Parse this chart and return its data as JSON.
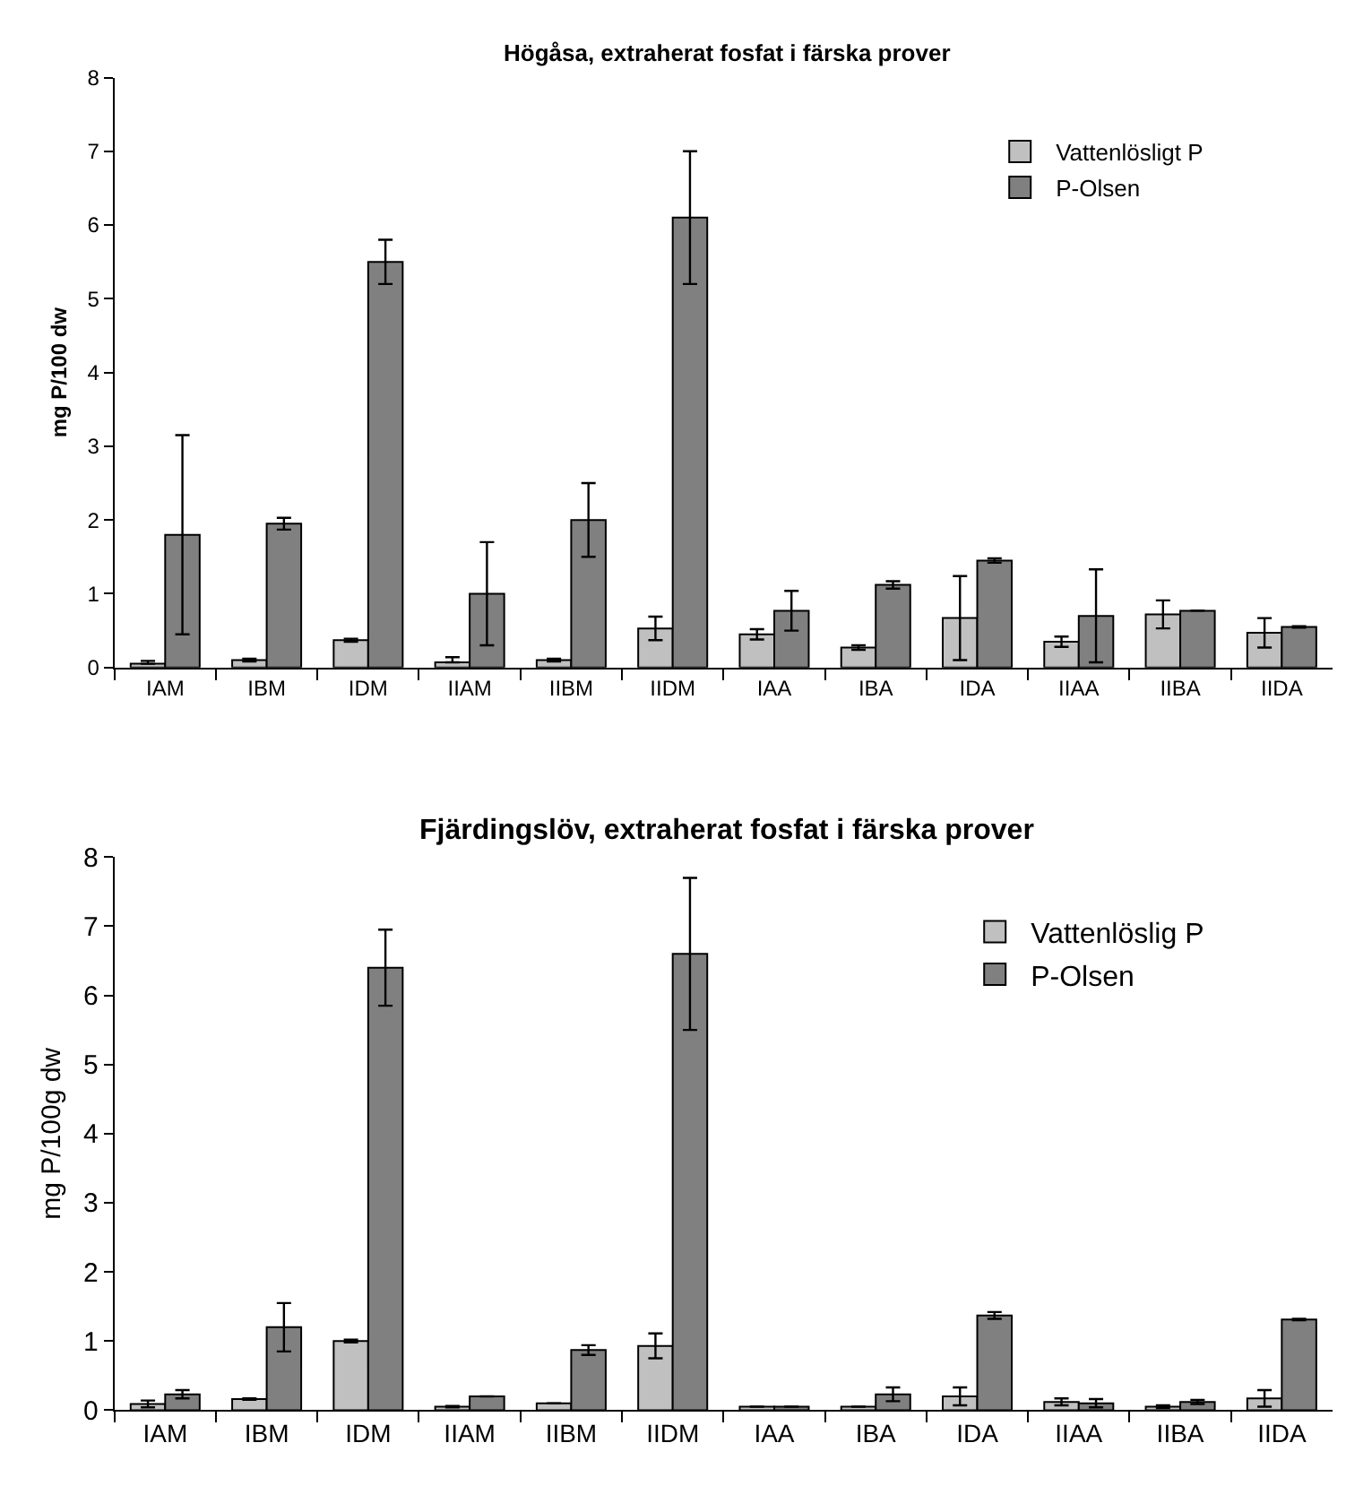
{
  "chart_data": [
    {
      "type": "bar",
      "title": "Högåsa, extraherat fosfat i färska prover",
      "ylabel": "mg P/100 dw",
      "categories": [
        "IAM",
        "IBM",
        "IDM",
        "IIAM",
        "IIBM",
        "IIDM",
        "IAA",
        "IBA",
        "IDA",
        "IIAA",
        "IIBA",
        "IIDA"
      ],
      "ylim": [
        0,
        8
      ],
      "yticks": [
        0,
        1,
        2,
        3,
        4,
        5,
        6,
        7,
        8
      ],
      "legend": "top right",
      "series": [
        {
          "name": "Vattenlösligt P",
          "color": "#c0c0c0",
          "values": [
            0.05,
            0.1,
            0.37,
            0.07,
            0.1,
            0.53,
            0.45,
            0.27,
            0.67,
            0.35,
            0.72,
            0.47
          ],
          "errors": [
            [
              0.05,
              0.09
            ],
            0.02,
            0.02,
            [
              0.07,
              0.14
            ],
            0.02,
            0.16,
            0.07,
            0.03,
            0.57,
            0.07,
            0.19,
            0.2
          ]
        },
        {
          "name": "P-Olsen",
          "color": "#808080",
          "values": [
            1.8,
            1.95,
            5.5,
            1.0,
            2.0,
            6.1,
            0.77,
            1.12,
            1.45,
            0.7,
            0.77,
            0.55
          ],
          "errors": [
            1.35,
            0.08,
            0.3,
            0.7,
            0.5,
            0.9,
            0.27,
            0.05,
            0.03,
            0.63,
            0.0,
            0.01
          ]
        }
      ]
    },
    {
      "type": "bar",
      "title": "Fjärdingslöv, extraherat fosfat i färska prover",
      "ylabel": "mg P/100g dw",
      "categories": [
        "IAM",
        "IBM",
        "IDM",
        "IIAM",
        "IIBM",
        "IIDM",
        "IAA",
        "IBA",
        "IDA",
        "IIAA",
        "IIBA",
        "IIDA"
      ],
      "ylim": [
        0,
        8
      ],
      "yticks": [
        0,
        1,
        2,
        3,
        4,
        5,
        6,
        7,
        8
      ],
      "legend": "top right",
      "series": [
        {
          "name": "Vattenlöslig P",
          "color": "#c0c0c0",
          "values": [
            0.09,
            0.16,
            1.0,
            0.05,
            0.1,
            0.93,
            0.05,
            0.05,
            0.2,
            0.12,
            0.05,
            0.17
          ],
          "errors": [
            0.05,
            0.01,
            0.02,
            0.01,
            0.0,
            0.18,
            0.0,
            0.0,
            0.13,
            0.05,
            0.02,
            0.12
          ]
        },
        {
          "name": "P-Olsen",
          "color": "#808080",
          "values": [
            0.23,
            1.2,
            6.4,
            0.2,
            0.87,
            6.6,
            0.05,
            0.23,
            1.37,
            0.1,
            0.12,
            1.31
          ],
          "errors": [
            0.06,
            0.35,
            0.55,
            0.0,
            0.07,
            1.1,
            0.0,
            0.1,
            0.05,
            0.06,
            0.03,
            0.01
          ]
        }
      ]
    }
  ]
}
